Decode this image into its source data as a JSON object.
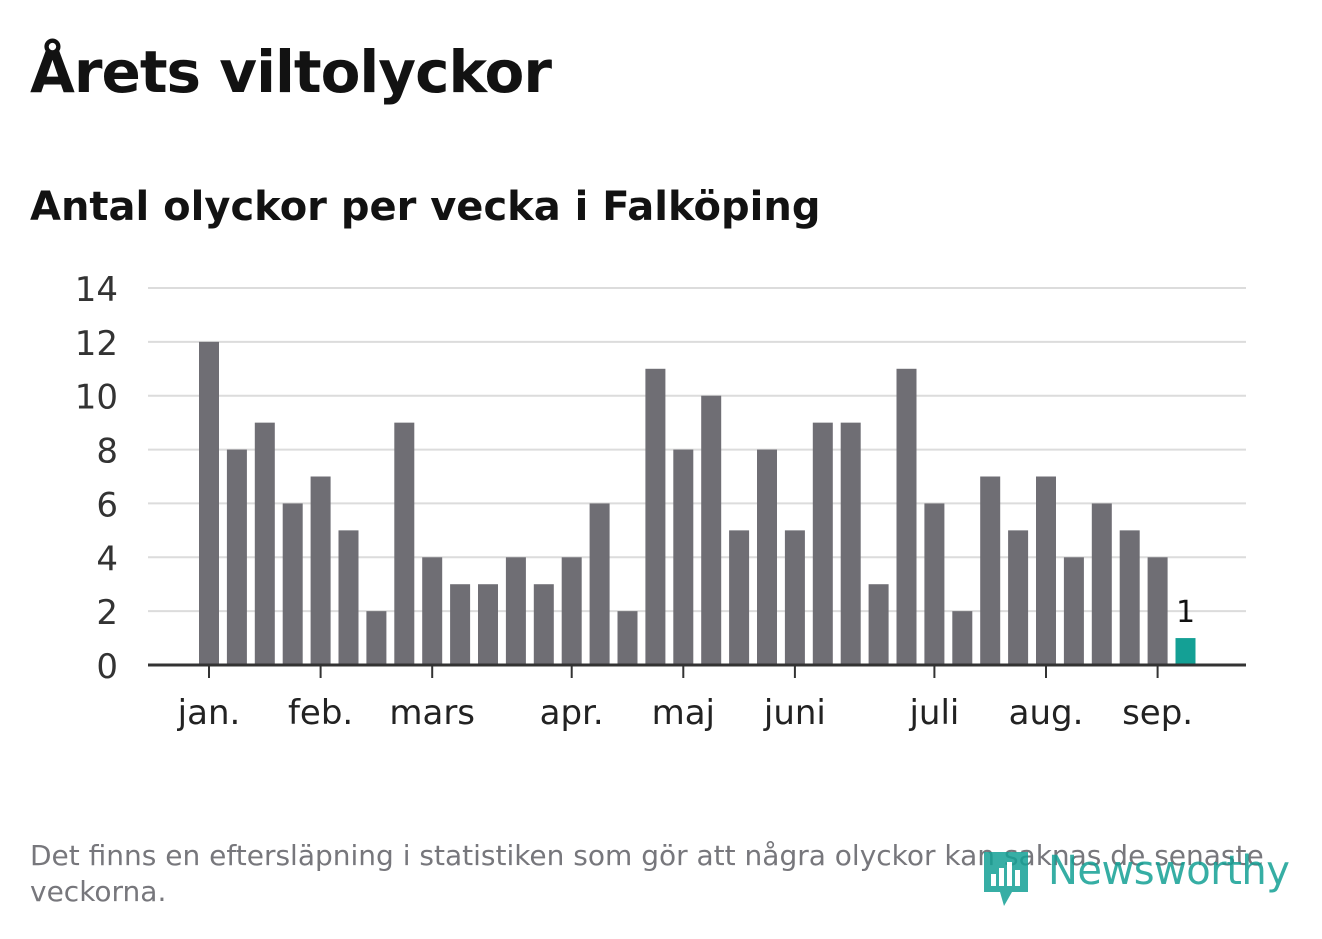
{
  "title": "Årets viltolyckor",
  "subtitle": "Antal olyckor per vecka i Falköping",
  "footnote": "Det finns en eftersläpning i statistiken som gör att några olyckor kan saknas de senaste veckorna.",
  "logo": {
    "text": "Newsworthy",
    "icon": "bar-chart-bubble-icon"
  },
  "colors": {
    "bar": "#6f6e74",
    "highlight": "#14a095",
    "grid": "#dcdcdc",
    "axis": "#333333",
    "text": "#121212"
  },
  "chart_data": {
    "type": "bar",
    "x": [
      1,
      2,
      3,
      4,
      5,
      6,
      7,
      8,
      9,
      10,
      11,
      12,
      13,
      14,
      15,
      16,
      17,
      18,
      19,
      20,
      21,
      22,
      23,
      24,
      25,
      26,
      27,
      28,
      29,
      30,
      31,
      32,
      33,
      34,
      35,
      36
    ],
    "values": [
      12,
      8,
      9,
      6,
      7,
      5,
      2,
      9,
      4,
      3,
      3,
      4,
      3,
      4,
      6,
      2,
      11,
      8,
      10,
      5,
      8,
      5,
      9,
      9,
      3,
      11,
      6,
      2,
      7,
      5,
      7,
      4,
      6,
      5,
      4,
      1
    ],
    "highlight_index": 35,
    "data_labels": [
      {
        "index": 35,
        "text": "1"
      }
    ],
    "month_ticks": [
      {
        "label": "jan.",
        "x": 1
      },
      {
        "label": "feb.",
        "x": 5
      },
      {
        "label": "mars",
        "x": 9
      },
      {
        "label": "apr.",
        "x": 14
      },
      {
        "label": "maj",
        "x": 18
      },
      {
        "label": "juni",
        "x": 22
      },
      {
        "label": "juli",
        "x": 27
      },
      {
        "label": "aug.",
        "x": 31
      },
      {
        "label": "sep.",
        "x": 35
      }
    ],
    "yticks": [
      0,
      2,
      4,
      6,
      8,
      10,
      12,
      14
    ],
    "ylim": [
      0,
      14
    ],
    "grid": true
  }
}
